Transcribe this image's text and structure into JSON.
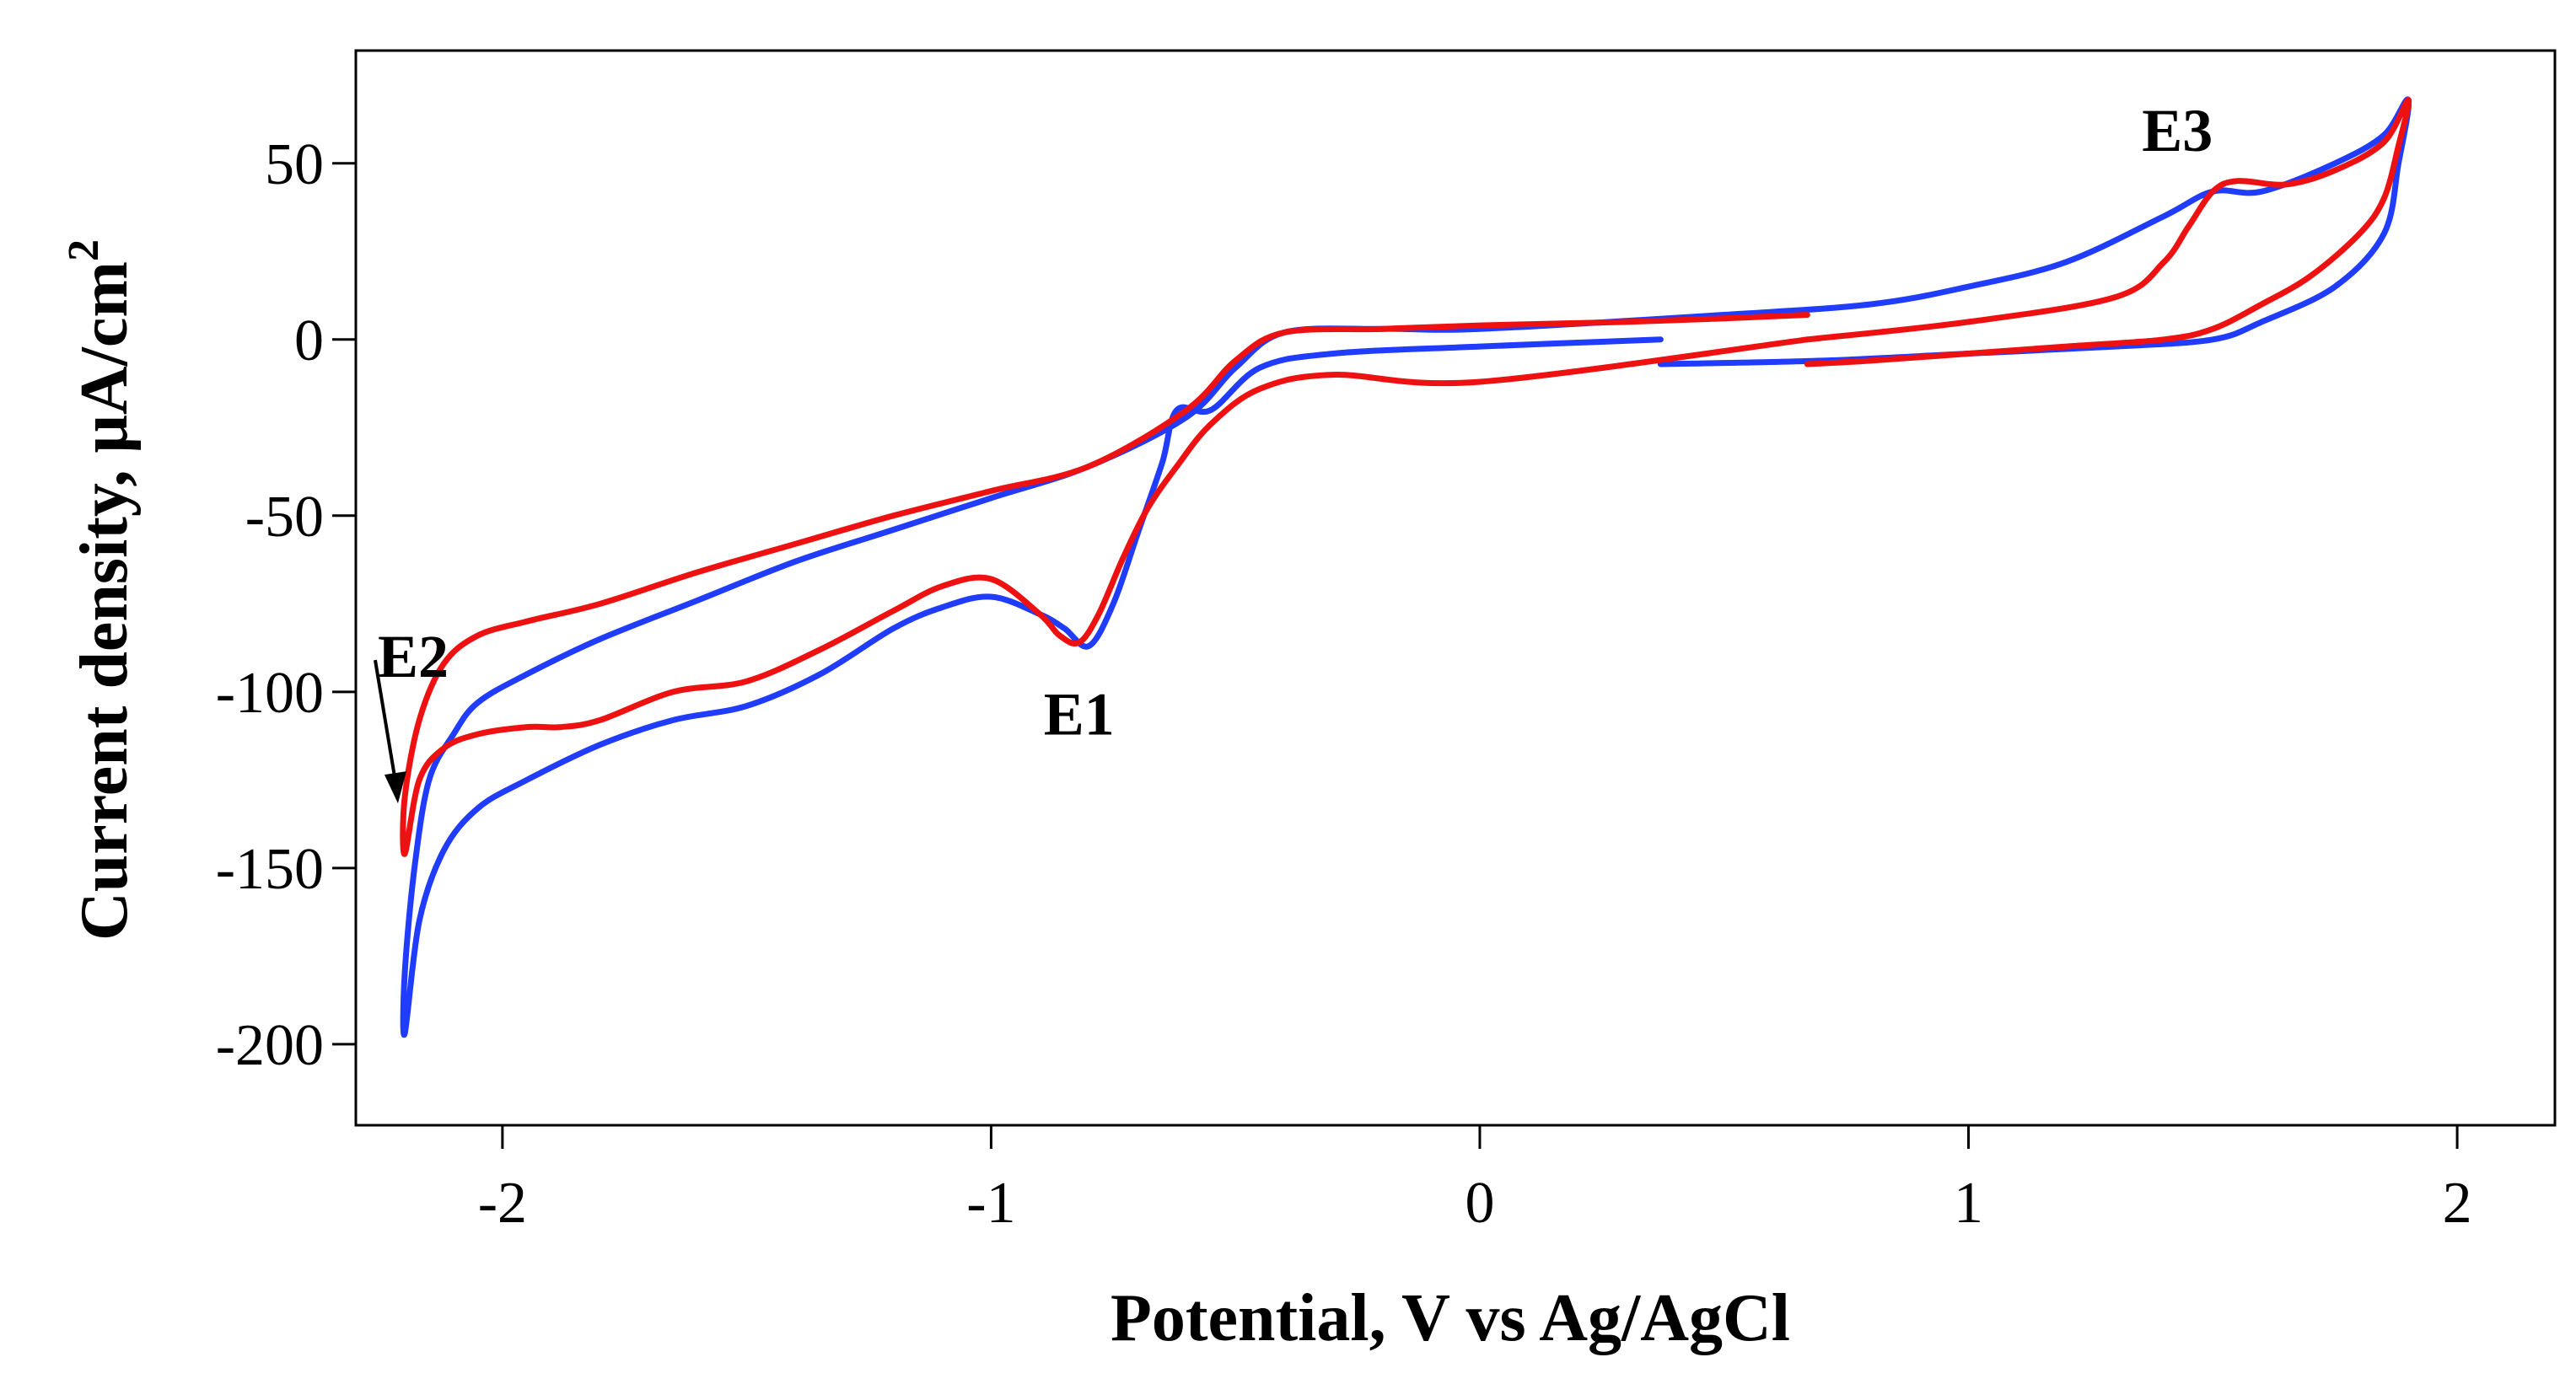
{
  "chart_data": {
    "type": "line",
    "title": "",
    "xlabel": "Potential, V vs Ag/AgCl",
    "ylabel": "Current density, μA/cm",
    "ylabel_superscript": "2",
    "xlim": [
      -2.3,
      2.2
    ],
    "ylim": [
      -223,
      82
    ],
    "xticks": [
      -2,
      -1,
      0,
      1,
      2
    ],
    "xtick_labels": [
      "-2",
      "-1",
      "0",
      "1",
      "2"
    ],
    "yticks": [
      50,
      0,
      -50,
      -100,
      -150,
      -200
    ],
    "ytick_labels": [
      "50",
      "0",
      "-50",
      "-100",
      "-150",
      "-200"
    ],
    "grid": false,
    "legend": "none",
    "annotations": [
      {
        "label": "E1",
        "x": -0.82,
        "y": -87
      },
      {
        "label": "E2",
        "x": -2.2,
        "y": -146
      },
      {
        "label": "E3",
        "x": 1.6,
        "y": 44
      }
    ],
    "series": [
      {
        "name": "blue",
        "color": "#1f3cff",
        "x": [
          0.37,
          0.0,
          -0.3,
          -0.45,
          -0.55,
          -0.62,
          -0.65,
          -0.7,
          -0.75,
          -0.8,
          -0.85,
          -0.9,
          -1.0,
          -1.1,
          -1.2,
          -1.35,
          -1.5,
          -1.65,
          -1.8,
          -1.95,
          -2.05,
          -2.12,
          -2.17,
          -2.2,
          -2.2,
          -2.18,
          -2.15,
          -2.1,
          -2.05,
          -1.95,
          -1.8,
          -1.6,
          -1.4,
          -1.2,
          -1.0,
          -0.8,
          -0.6,
          -0.5,
          -0.4,
          -0.2,
          0.0,
          0.5,
          0.8,
          1.0,
          1.2,
          1.4,
          1.5,
          1.6,
          1.75,
          1.85,
          1.9,
          1.88,
          1.85,
          1.75,
          1.6,
          1.5,
          1.3,
          1.0,
          0.7,
          0.37
        ],
        "y": [
          0,
          -2,
          -4,
          -8,
          -20,
          -20,
          -35,
          -55,
          -75,
          -87,
          -82,
          -78,
          -73,
          -76,
          -82,
          -95,
          -104,
          -108,
          -115,
          -125,
          -133,
          -145,
          -165,
          -197,
          -180,
          -150,
          -125,
          -112,
          -103,
          -95,
          -85,
          -74,
          -63,
          -54,
          -45,
          -36,
          -22,
          -8,
          2,
          3,
          3,
          7,
          10,
          15,
          22,
          35,
          42,
          42,
          50,
          58,
          68,
          50,
          30,
          15,
          5,
          0,
          -2,
          -4,
          -6,
          -7
        ]
      },
      {
        "name": "red",
        "color": "#ee1111",
        "x": [
          0.67,
          0.0,
          -0.3,
          -0.45,
          -0.55,
          -0.62,
          -0.68,
          -0.73,
          -0.78,
          -0.82,
          -0.86,
          -0.9,
          -1.0,
          -1.1,
          -1.2,
          -1.35,
          -1.5,
          -1.65,
          -1.8,
          -1.88,
          -1.95,
          -2.05,
          -2.12,
          -2.17,
          -2.2,
          -2.2,
          -2.17,
          -2.12,
          -2.05,
          -1.95,
          -1.8,
          -1.6,
          -1.4,
          -1.2,
          -1.0,
          -0.8,
          -0.6,
          -0.5,
          -0.4,
          -0.2,
          0.0,
          0.3,
          0.5,
          0.67
        ],
        "y": [
          0,
          -12,
          -10,
          -14,
          -24,
          -36,
          -48,
          -62,
          -78,
          -86,
          -84,
          -78,
          -68,
          -70,
          -77,
          -88,
          -97,
          -100,
          -108,
          -110,
          -110,
          -112,
          -116,
          -125,
          -146,
          -130,
          -108,
          -92,
          -84,
          -80,
          -75,
          -66,
          -58,
          -50,
          -43,
          -36,
          -20,
          -6,
          2,
          3,
          4,
          5,
          6,
          7
        ]
      },
      {
        "name": "red-anodic",
        "color": "#ee1111",
        "x": [
          0.67,
          1.0,
          1.3,
          1.4,
          1.45,
          1.5,
          1.55,
          1.65,
          1.75,
          1.85,
          1.9,
          1.88,
          1.85,
          1.8,
          1.7,
          1.6,
          1.5,
          1.4,
          1.2,
          1.0,
          0.8,
          0.67
        ],
        "y": [
          0,
          5,
          12,
          22,
          32,
          42,
          45,
          44,
          48,
          56,
          68,
          55,
          40,
          30,
          18,
          10,
          3,
          0,
          -2,
          -4,
          -6,
          -7
        ]
      }
    ]
  }
}
